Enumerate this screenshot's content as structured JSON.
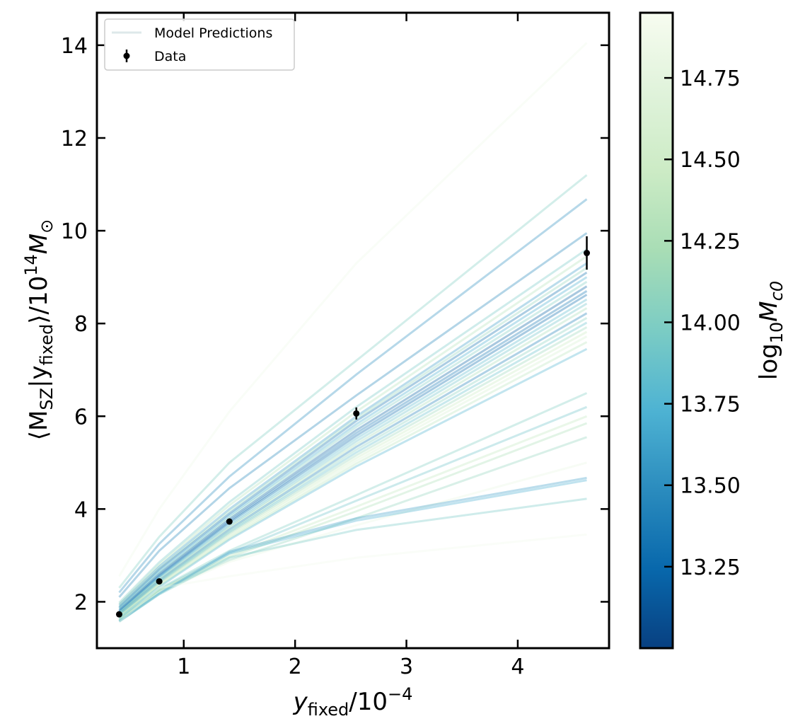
{
  "chart_data": {
    "type": "line",
    "xlabel_main": "y",
    "xlabel_sub": "fixed",
    "xlabel_tail": "/10",
    "xlabel_exp": "−4",
    "ylabel_parts": {
      "open": "⟨M",
      "sub1": "SZ",
      "mid": "|y",
      "sub2": "fixed",
      "close": "⟩/10",
      "exp": "14",
      "tail": "M",
      "sub3": "⊙"
    },
    "xlim": [
      0.22,
      4.82
    ],
    "ylim": [
      1.0,
      14.7
    ],
    "xticks": [
      1,
      2,
      3,
      4
    ],
    "xtick_labels": [
      "1",
      "2",
      "3",
      "4"
    ],
    "yticks": [
      2,
      4,
      6,
      8,
      10,
      12,
      14
    ],
    "ytick_labels": [
      "2",
      "4",
      "6",
      "8",
      "10",
      "12",
      "14"
    ],
    "legend": {
      "placement": "upper-left",
      "entries": [
        {
          "label": "Model Predictions",
          "marker": "line"
        },
        {
          "label": "Data",
          "marker": "errorbar"
        }
      ]
    },
    "data_points": {
      "name": "Data",
      "x": [
        0.42,
        0.78,
        1.41,
        2.55,
        4.62
      ],
      "y": [
        1.73,
        2.44,
        3.73,
        6.06,
        9.52
      ],
      "yerr": [
        0.04,
        0.05,
        0.05,
        0.13,
        0.36
      ]
    },
    "model_x": [
      0.42,
      0.78,
      1.41,
      2.55,
      4.62
    ],
    "model_lines": [
      {
        "y": [
          2.55,
          4.0,
          6.1,
          9.3,
          14.05
        ],
        "c": 14.85
      },
      {
        "y": [
          2.3,
          3.4,
          5.0,
          7.2,
          11.2
        ],
        "c": 14.0
      },
      {
        "y": [
          2.2,
          3.25,
          4.7,
          6.9,
          10.68
        ],
        "c": 13.5
      },
      {
        "y": [
          2.1,
          3.1,
          4.45,
          6.45,
          9.95
        ],
        "c": 13.45
      },
      {
        "y": [
          1.98,
          2.85,
          4.15,
          6.2,
          9.6
        ],
        "c": 13.95
      },
      {
        "y": [
          1.95,
          2.8,
          4.08,
          6.1,
          9.45
        ],
        "c": 14.3
      },
      {
        "y": [
          1.93,
          2.76,
          4.0,
          6.0,
          9.3
        ],
        "c": 13.6
      },
      {
        "y": [
          1.9,
          2.72,
          3.95,
          5.95,
          9.2
        ],
        "c": 14.1
      },
      {
        "y": [
          1.88,
          2.7,
          3.9,
          5.9,
          9.1
        ],
        "c": 13.3
      },
      {
        "y": [
          1.86,
          2.66,
          3.86,
          5.83,
          9.0
        ],
        "c": 13.7
      },
      {
        "y": [
          1.84,
          2.63,
          3.82,
          5.77,
          8.9
        ],
        "c": 14.0
      },
      {
        "y": [
          1.82,
          2.6,
          3.78,
          5.7,
          8.8
        ],
        "c": 13.2
      },
      {
        "y": [
          1.8,
          2.57,
          3.74,
          5.64,
          8.7
        ],
        "c": 13.35
      },
      {
        "y": [
          1.78,
          2.55,
          3.71,
          5.58,
          8.62
        ],
        "c": 13.25
      },
      {
        "y": [
          1.77,
          2.53,
          3.67,
          5.52,
          8.52
        ],
        "c": 13.8
      },
      {
        "y": [
          1.76,
          2.51,
          3.63,
          5.46,
          8.43
        ],
        "c": 13.9
      },
      {
        "y": [
          1.75,
          2.48,
          3.6,
          5.4,
          8.33
        ],
        "c": 14.2
      },
      {
        "y": [
          1.73,
          2.46,
          3.56,
          5.34,
          8.22
        ],
        "c": 13.4
      },
      {
        "y": [
          1.72,
          2.44,
          3.53,
          5.28,
          8.12
        ],
        "c": 14.05
      },
      {
        "y": [
          1.7,
          2.42,
          3.5,
          5.22,
          8.02
        ],
        "c": 13.85
      },
      {
        "y": [
          1.69,
          2.4,
          3.47,
          5.16,
          7.92
        ],
        "c": 14.15
      },
      {
        "y": [
          1.68,
          2.38,
          3.43,
          5.1,
          7.82
        ],
        "c": 14.45
      },
      {
        "y": [
          1.67,
          2.36,
          3.4,
          5.04,
          7.72
        ],
        "c": 14.6
      },
      {
        "y": [
          1.66,
          2.34,
          3.37,
          4.98,
          7.6
        ],
        "c": 14.35
      },
      {
        "y": [
          1.65,
          2.32,
          3.34,
          4.92,
          7.45
        ],
        "c": 13.75
      },
      {
        "y": [
          1.62,
          2.28,
          3.1,
          4.3,
          6.5
        ],
        "c": 14.0
      },
      {
        "y": [
          1.62,
          2.26,
          3.05,
          4.18,
          6.2
        ],
        "c": 13.9
      },
      {
        "y": [
          1.61,
          2.25,
          3.0,
          4.05,
          6.0
        ],
        "c": 14.4
      },
      {
        "y": [
          1.6,
          2.24,
          2.96,
          3.95,
          5.85
        ],
        "c": 14.25
      },
      {
        "y": [
          1.6,
          2.22,
          2.9,
          3.8,
          5.55
        ],
        "c": 14.1
      },
      {
        "y": [
          1.59,
          2.2,
          2.86,
          3.65,
          5.0
        ],
        "c": 14.8
      },
      {
        "y": [
          1.58,
          2.18,
          3.08,
          3.8,
          4.67
        ],
        "c": 13.6
      },
      {
        "y": [
          1.58,
          2.17,
          3.04,
          3.75,
          4.62
        ],
        "c": 13.7
      },
      {
        "y": [
          1.57,
          2.16,
          2.95,
          3.55,
          4.22
        ],
        "c": 13.95
      },
      {
        "y": [
          1.56,
          2.3,
          2.55,
          2.95,
          3.45
        ],
        "c": 14.9
      }
    ]
  },
  "colorbar": {
    "label_main": "log",
    "label_sub": "10",
    "label_tail": "M",
    "label_sub2": "c0",
    "range": [
      13.0,
      14.95
    ],
    "ticks": [
      13.25,
      13.5,
      13.75,
      14.0,
      14.25,
      14.5,
      14.75
    ],
    "tick_labels": [
      "13.25",
      "13.50",
      "13.75",
      "14.00",
      "14.25",
      "14.50",
      "14.75"
    ],
    "colormap": "GnBu",
    "stops": [
      "#f7fcf0",
      "#e0f3db",
      "#ccebc5",
      "#a8ddb5",
      "#7bccc4",
      "#4eb3d3",
      "#2b8cbe",
      "#0868ac",
      "#084081"
    ]
  }
}
